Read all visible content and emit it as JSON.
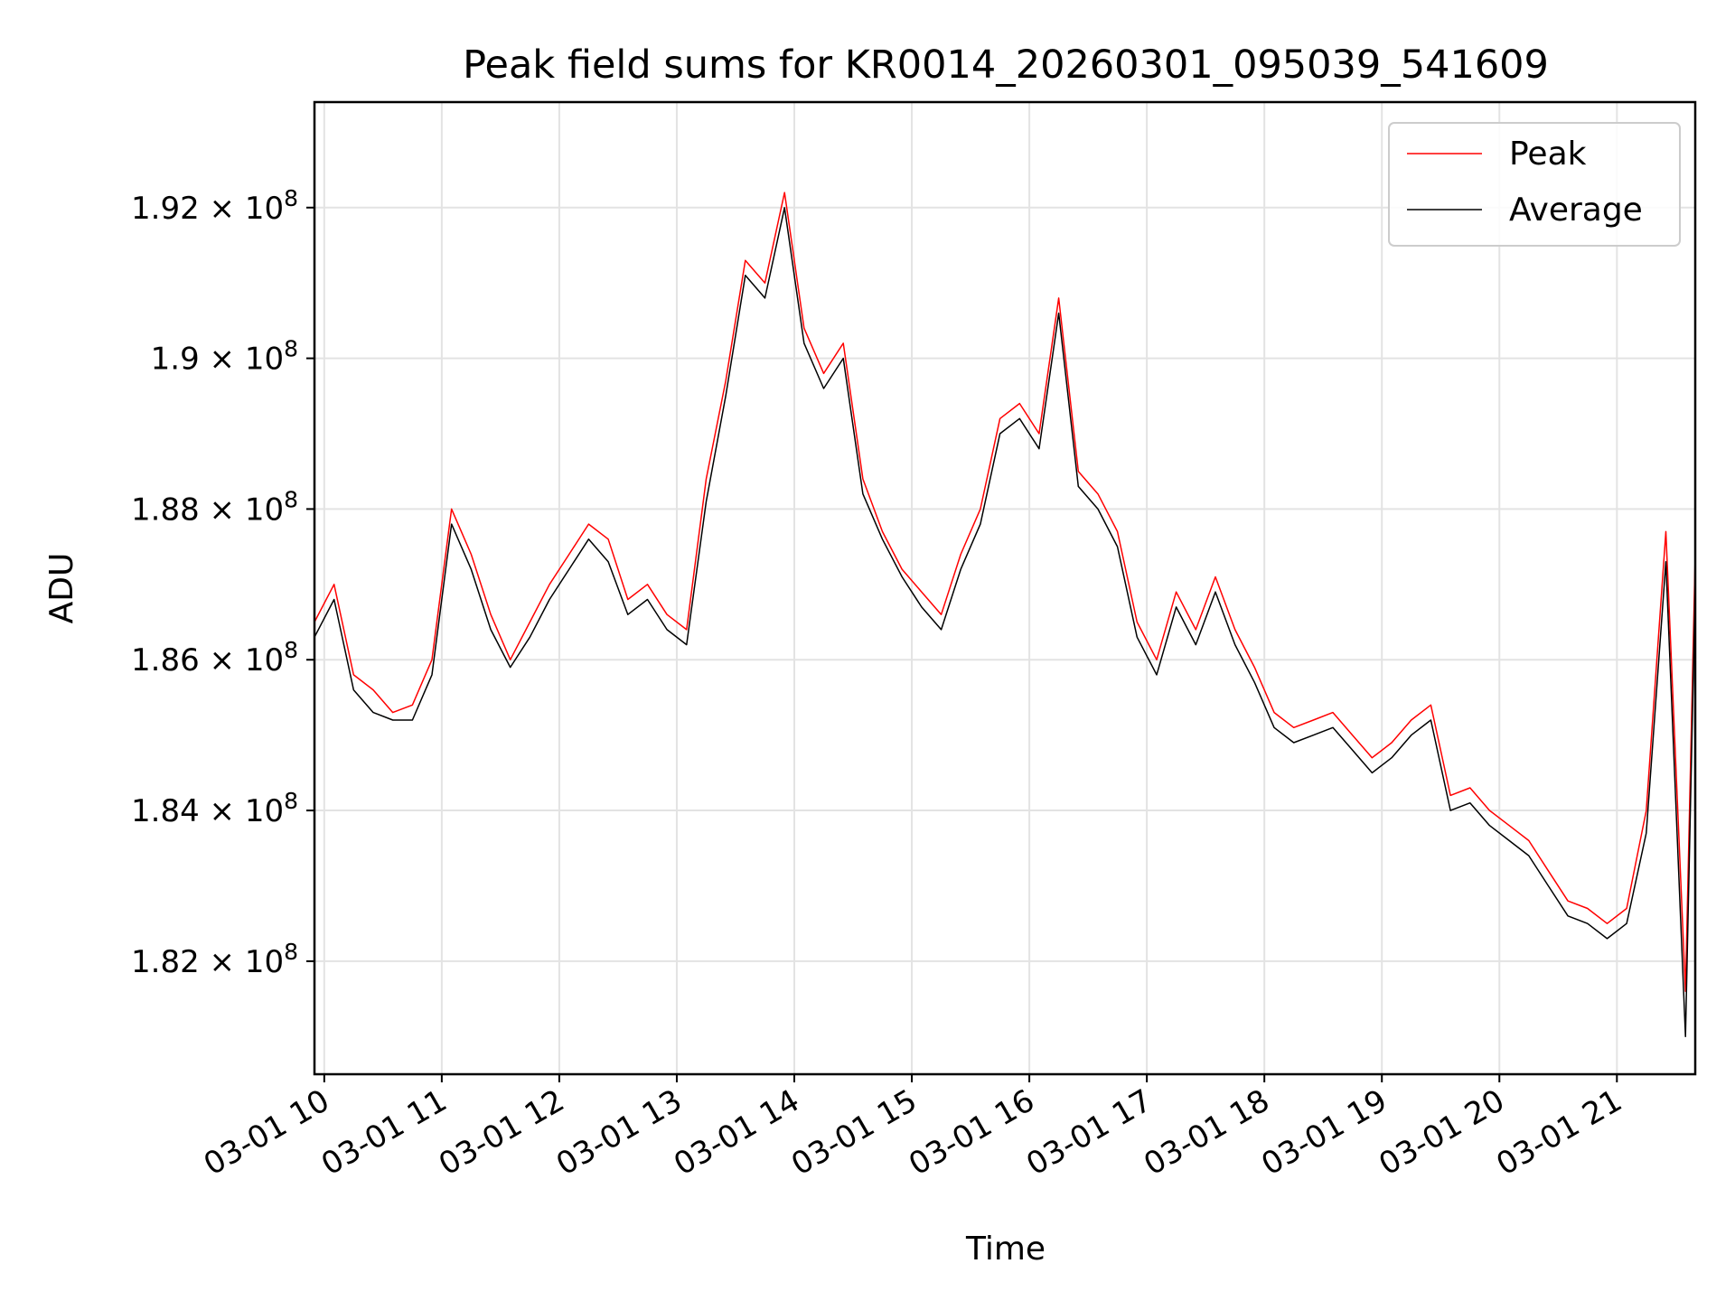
{
  "chart_data": {
    "type": "line",
    "title": "Peak field sums for KR0014_20260301_095039_541609",
    "xlabel": "Time",
    "ylabel": "ADU",
    "xlim": [
      "2026-03-01 09:55",
      "2026-03-01 21:40"
    ],
    "ylim": [
      180500000,
      193400000
    ],
    "grid": true,
    "legend_position": "upper right",
    "x_ticks": [
      {
        "value": "2026-03-01 10:00",
        "label": "03-01 10"
      },
      {
        "value": "2026-03-01 11:00",
        "label": "03-01 11"
      },
      {
        "value": "2026-03-01 12:00",
        "label": "03-01 12"
      },
      {
        "value": "2026-03-01 13:00",
        "label": "03-01 13"
      },
      {
        "value": "2026-03-01 14:00",
        "label": "03-01 14"
      },
      {
        "value": "2026-03-01 15:00",
        "label": "03-01 15"
      },
      {
        "value": "2026-03-01 16:00",
        "label": "03-01 16"
      },
      {
        "value": "2026-03-01 17:00",
        "label": "03-01 17"
      },
      {
        "value": "2026-03-01 18:00",
        "label": "03-01 18"
      },
      {
        "value": "2026-03-01 19:00",
        "label": "03-01 19"
      },
      {
        "value": "2026-03-01 20:00",
        "label": "03-01 20"
      },
      {
        "value": "2026-03-01 21:00",
        "label": "03-01 21"
      }
    ],
    "y_ticks": [
      {
        "value": 182000000,
        "mantissa": "1.82",
        "exponent": "8"
      },
      {
        "value": 184000000,
        "mantissa": "1.84",
        "exponent": "8"
      },
      {
        "value": 186000000,
        "mantissa": "1.86",
        "exponent": "8"
      },
      {
        "value": 188000000,
        "mantissa": "1.88",
        "exponent": "8"
      },
      {
        "value": 190000000,
        "mantissa": "1.9",
        "exponent": "8"
      },
      {
        "value": 192000000,
        "mantissa": "1.92",
        "exponent": "8"
      }
    ],
    "x": [
      "2026-03-01 09:55",
      "2026-03-01 10:05",
      "2026-03-01 10:15",
      "2026-03-01 10:25",
      "2026-03-01 10:35",
      "2026-03-01 10:45",
      "2026-03-01 10:55",
      "2026-03-01 11:05",
      "2026-03-01 11:15",
      "2026-03-01 11:25",
      "2026-03-01 11:35",
      "2026-03-01 11:45",
      "2026-03-01 11:55",
      "2026-03-01 12:05",
      "2026-03-01 12:15",
      "2026-03-01 12:25",
      "2026-03-01 12:35",
      "2026-03-01 12:45",
      "2026-03-01 12:55",
      "2026-03-01 13:05",
      "2026-03-01 13:15",
      "2026-03-01 13:25",
      "2026-03-01 13:35",
      "2026-03-01 13:45",
      "2026-03-01 13:55",
      "2026-03-01 14:05",
      "2026-03-01 14:15",
      "2026-03-01 14:25",
      "2026-03-01 14:35",
      "2026-03-01 14:45",
      "2026-03-01 14:55",
      "2026-03-01 15:05",
      "2026-03-01 15:15",
      "2026-03-01 15:25",
      "2026-03-01 15:35",
      "2026-03-01 15:45",
      "2026-03-01 15:55",
      "2026-03-01 16:05",
      "2026-03-01 16:15",
      "2026-03-01 16:25",
      "2026-03-01 16:35",
      "2026-03-01 16:45",
      "2026-03-01 16:55",
      "2026-03-01 17:05",
      "2026-03-01 17:15",
      "2026-03-01 17:25",
      "2026-03-01 17:35",
      "2026-03-01 17:45",
      "2026-03-01 17:55",
      "2026-03-01 18:05",
      "2026-03-01 18:15",
      "2026-03-01 18:25",
      "2026-03-01 18:35",
      "2026-03-01 18:45",
      "2026-03-01 18:55",
      "2026-03-01 19:05",
      "2026-03-01 19:15",
      "2026-03-01 19:25",
      "2026-03-01 19:35",
      "2026-03-01 19:45",
      "2026-03-01 19:55",
      "2026-03-01 20:05",
      "2026-03-01 20:15",
      "2026-03-01 20:25",
      "2026-03-01 20:35",
      "2026-03-01 20:45",
      "2026-03-01 20:55",
      "2026-03-01 21:05",
      "2026-03-01 21:15",
      "2026-03-01 21:25",
      "2026-03-01 21:35",
      "2026-03-01 21:40"
    ],
    "series": [
      {
        "name": "Peak",
        "color": "#ff0000",
        "values": [
          186500000,
          187000000,
          185800000,
          185600000,
          185300000,
          185400000,
          186000000,
          188000000,
          187400000,
          186600000,
          186000000,
          186500000,
          187000000,
          187400000,
          187800000,
          187600000,
          186800000,
          187000000,
          186600000,
          186400000,
          188400000,
          189700000,
          191300000,
          191000000,
          192200000,
          190400000,
          189800000,
          190200000,
          188400000,
          187700000,
          187200000,
          186900000,
          186600000,
          187400000,
          188000000,
          189200000,
          189400000,
          189000000,
          190800000,
          188500000,
          188200000,
          187700000,
          186500000,
          186000000,
          186900000,
          186400000,
          187100000,
          186400000,
          185900000,
          185300000,
          185100000,
          185200000,
          185300000,
          185000000,
          184700000,
          184900000,
          185200000,
          185400000,
          184200000,
          184300000,
          184000000,
          183800000,
          183600000,
          183200000,
          182800000,
          182700000,
          182500000,
          182700000,
          184000000,
          187700000,
          181600000,
          187400000
        ]
      },
      {
        "name": "Average",
        "color": "#000000",
        "values": [
          186300000,
          186800000,
          185600000,
          185300000,
          185200000,
          185200000,
          185800000,
          187800000,
          187200000,
          186400000,
          185900000,
          186300000,
          186800000,
          187200000,
          187600000,
          187300000,
          186600000,
          186800000,
          186400000,
          186200000,
          188100000,
          189500000,
          191100000,
          190800000,
          192000000,
          190200000,
          189600000,
          190000000,
          188200000,
          187600000,
          187100000,
          186700000,
          186400000,
          187200000,
          187800000,
          189000000,
          189200000,
          188800000,
          190600000,
          188300000,
          188000000,
          187500000,
          186300000,
          185800000,
          186700000,
          186200000,
          186900000,
          186200000,
          185700000,
          185100000,
          184900000,
          185000000,
          185100000,
          184800000,
          184500000,
          184700000,
          185000000,
          185200000,
          184000000,
          184100000,
          183800000,
          183600000,
          183400000,
          183000000,
          182600000,
          182500000,
          182300000,
          182500000,
          183700000,
          187300000,
          181000000,
          187000000
        ]
      }
    ]
  }
}
